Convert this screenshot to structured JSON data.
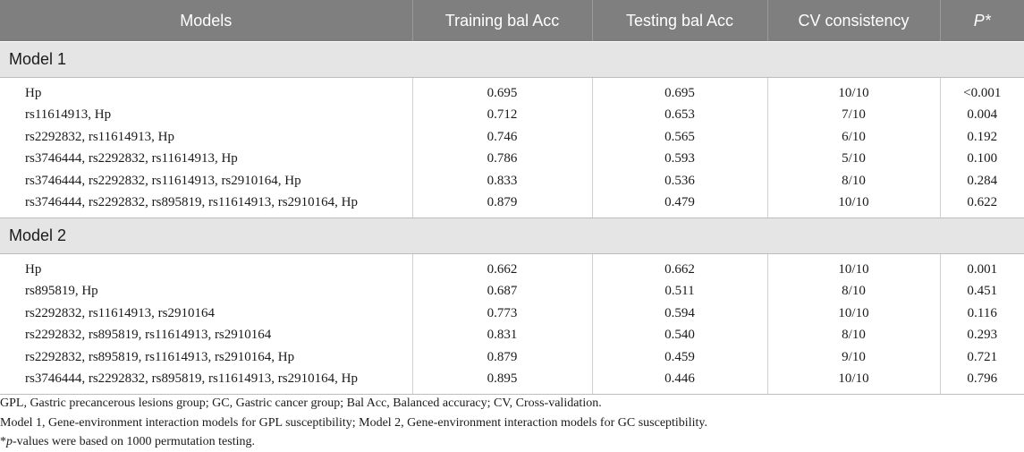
{
  "columns": [
    "Models",
    "Training bal Acc",
    "Testing bal Acc",
    "CV consistency",
    "P*"
  ],
  "sections": [
    {
      "title": "Model 1",
      "rows": [
        [
          "Hp",
          "0.695",
          "0.695",
          "10/10",
          "<0.001"
        ],
        [
          "rs11614913, Hp",
          "0.712",
          "0.653",
          "7/10",
          "0.004"
        ],
        [
          "rs2292832, rs11614913, Hp",
          "0.746",
          "0.565",
          "6/10",
          "0.192"
        ],
        [
          "rs3746444, rs2292832, rs11614913, Hp",
          "0.786",
          "0.593",
          "5/10",
          "0.100"
        ],
        [
          "rs3746444, rs2292832, rs11614913, rs2910164, Hp",
          "0.833",
          "0.536",
          "8/10",
          "0.284"
        ],
        [
          "rs3746444, rs2292832, rs895819, rs11614913, rs2910164, Hp",
          "0.879",
          "0.479",
          "10/10",
          "0.622"
        ]
      ]
    },
    {
      "title": "Model 2",
      "rows": [
        [
          "Hp",
          "0.662",
          "0.662",
          "10/10",
          "0.001"
        ],
        [
          "rs895819, Hp",
          "0.687",
          "0.511",
          "8/10",
          "0.451"
        ],
        [
          "rs2292832, rs11614913, rs2910164",
          "0.773",
          "0.594",
          "10/10",
          "0.116"
        ],
        [
          "rs2292832, rs895819, rs11614913, rs2910164",
          "0.831",
          "0.540",
          "8/10",
          "0.293"
        ],
        [
          "rs2292832, rs895819, rs11614913, rs2910164, Hp",
          "0.879",
          "0.459",
          "9/10",
          "0.721"
        ],
        [
          "rs3746444, rs2292832, rs895819, rs11614913, rs2910164, Hp",
          "0.895",
          "0.446",
          "10/10",
          "0.796"
        ]
      ]
    }
  ],
  "footnotes": {
    "line1": "GPL, Gastric precancerous lesions group; GC, Gastric cancer group; Bal Acc, Balanced accuracy; CV, Cross-validation.",
    "line2": "Model 1, Gene-environment interaction models for GPL susceptibility; Model 2, Gene-environment interaction models for GC susceptibility.",
    "line3_mark": "*",
    "line3_italic": "p",
    "line3_text": "-values were based on 1000 permutation testing."
  }
}
